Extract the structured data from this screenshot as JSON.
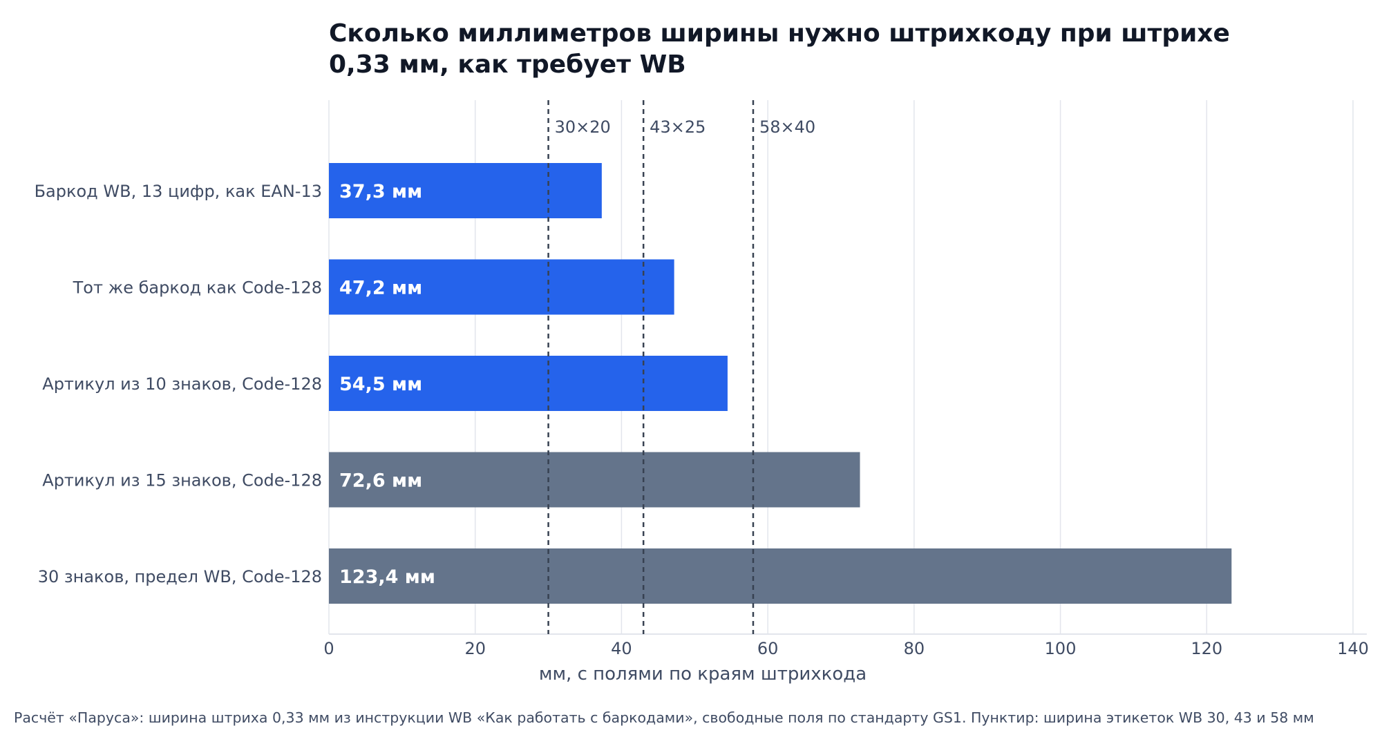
{
  "chart_data": {
    "type": "bar",
    "orientation": "horizontal",
    "title": "Сколько миллиметров ширины нужно штрихкоду при штрихе 0,33 мм, как требует WB",
    "title_lines": [
      "Сколько миллиметров ширины нужно штрихкоду при штрихе",
      "0,33 мм, как требует WB"
    ],
    "categories": [
      "Баркод WB, 13 цифр, как EAN-13",
      "Тот же баркод как Code-128",
      "Артикул из 10 знаков, Code-128",
      "Артикул из 15 знаков, Code-128",
      "30 знаков, предел WB, Code-128"
    ],
    "values": [
      37.3,
      47.2,
      54.5,
      72.6,
      123.4
    ],
    "value_labels": [
      "37,3 мм",
      "47,2 мм",
      "54,5 мм",
      "72,6 мм",
      "123,4 мм"
    ],
    "bar_colors": [
      "#2563eb",
      "#2563eb",
      "#2563eb",
      "#64748b",
      "#64748b"
    ],
    "xlabel": "мм, с полями по краям штрихкода",
    "ylabel": "",
    "xlim": [
      0,
      140
    ],
    "xticks": [
      0,
      20,
      40,
      60,
      80,
      100,
      120,
      140
    ],
    "grid": "vertical",
    "reference_lines": [
      {
        "value": 30,
        "label": "30×20"
      },
      {
        "value": 43,
        "label": "43×25"
      },
      {
        "value": 58,
        "label": "58×40"
      }
    ],
    "footnote": "Расчёт «Паруса»: ширина штриха 0,33 мм из инструкции WB «Как работать с баркодами», свободные поля по стандарту GS1. Пунктир: ширина этикеток WB 30, 43 и 58 мм"
  },
  "colors": {
    "accent_blue": "#2563eb",
    "slate": "#64748b",
    "text": "#3f4b63",
    "title": "#111827",
    "grid": "#e2e5ec",
    "ref_line": "#374151"
  }
}
